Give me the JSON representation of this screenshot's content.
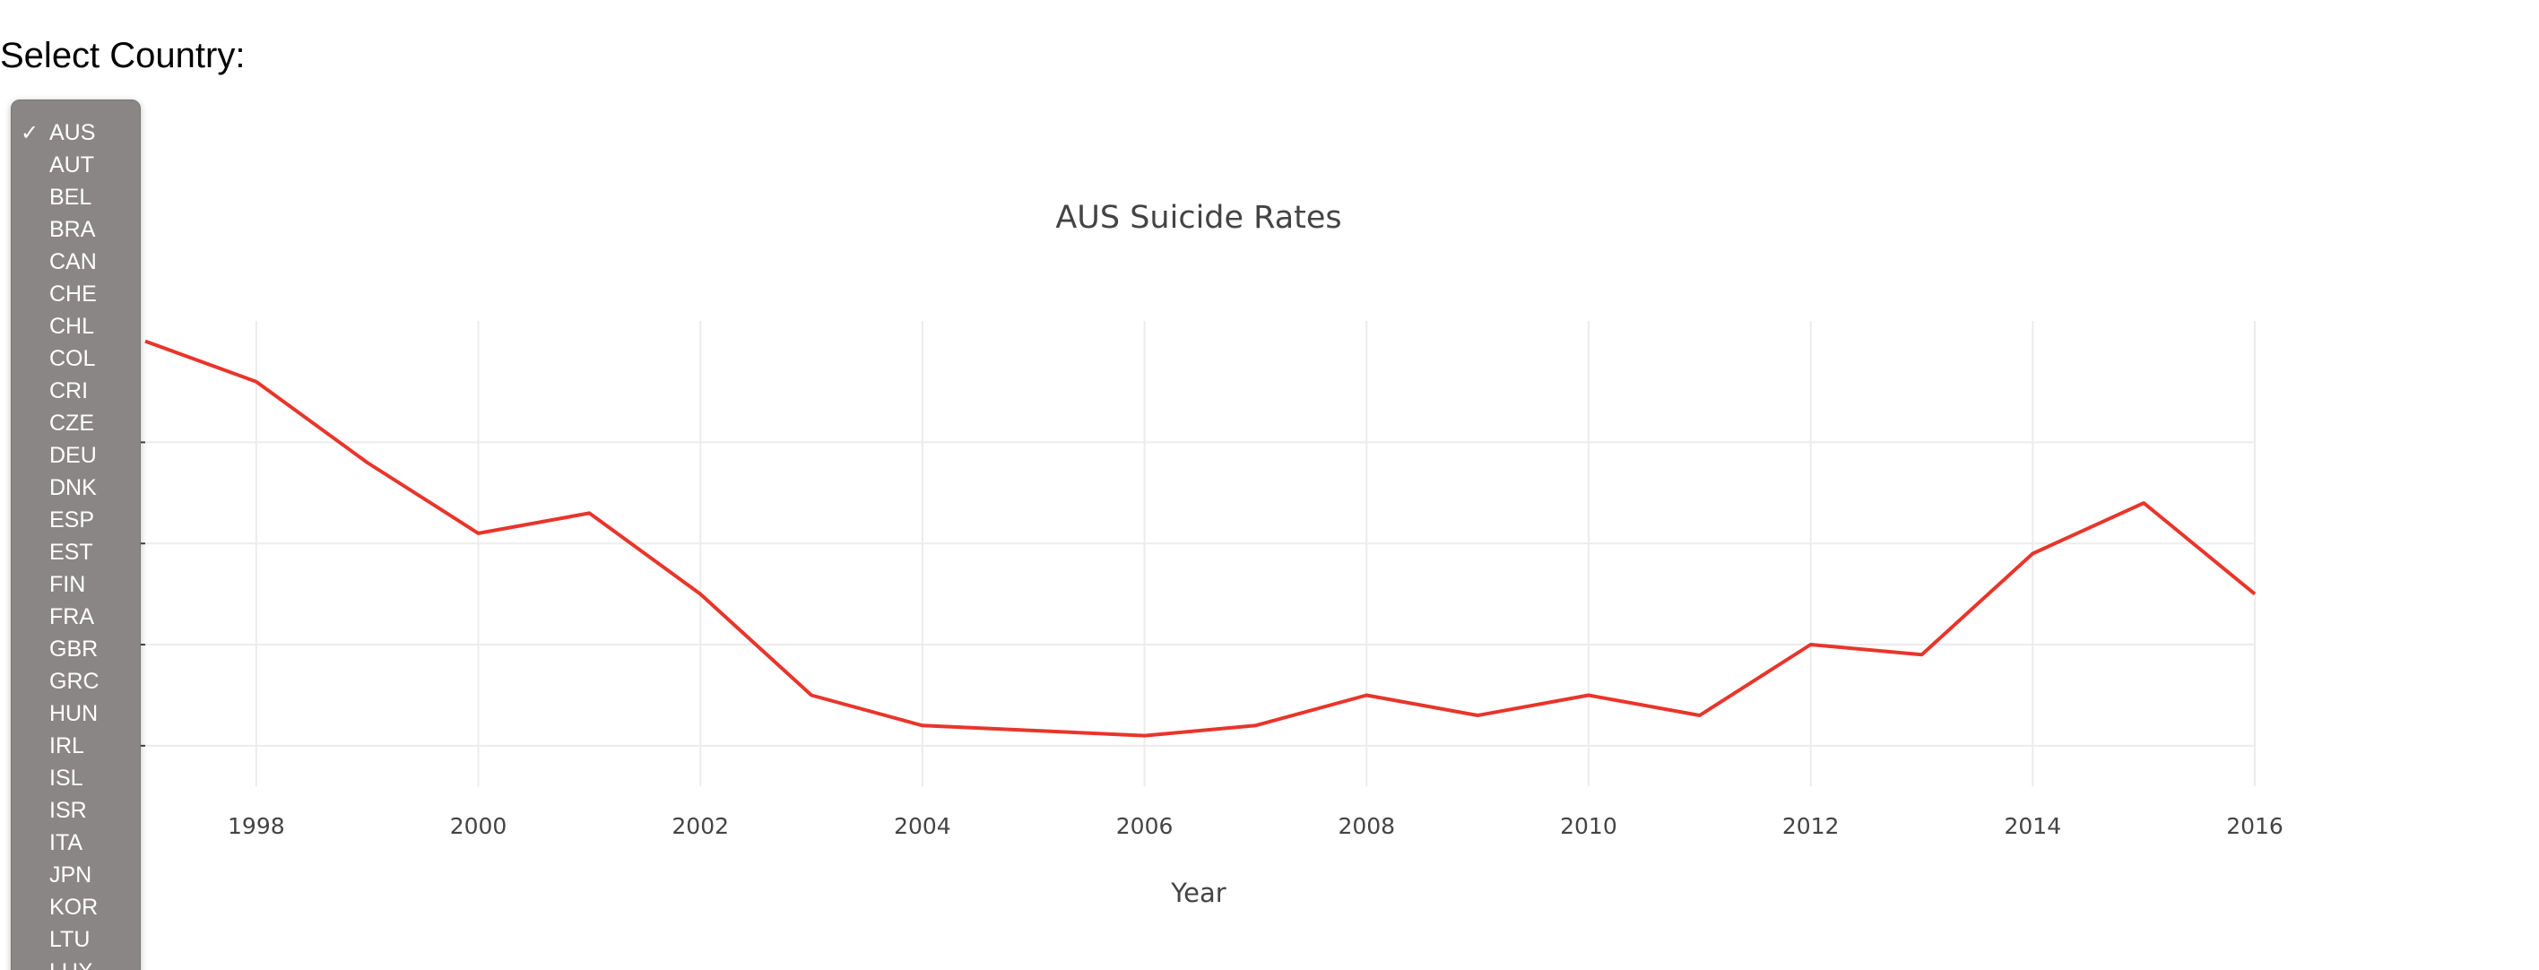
{
  "select_label": "Select Country:",
  "dropdown": {
    "selected": "AUS",
    "options": [
      "AUS",
      "AUT",
      "BEL",
      "BRA",
      "CAN",
      "CHE",
      "CHL",
      "COL",
      "CRI",
      "CZE",
      "DEU",
      "DNK",
      "ESP",
      "EST",
      "FIN",
      "FRA",
      "GBR",
      "GRC",
      "HUN",
      "IRL",
      "ISL",
      "ISR",
      "ITA",
      "JPN",
      "KOR",
      "LTU",
      "LUX"
    ]
  },
  "chart_data": {
    "type": "line",
    "title": "AUS Suicide Rates",
    "xlabel": "Year",
    "ylabel": "",
    "x": [
      1997,
      1998,
      1999,
      2000,
      2001,
      2002,
      2003,
      2004,
      2005,
      2006,
      2007,
      2008,
      2009,
      2010,
      2011,
      2012,
      2013,
      2014,
      2015,
      2016
    ],
    "series": [
      {
        "values": [
          15.0,
          14.6,
          13.8,
          13.1,
          13.3,
          12.5,
          11.5,
          11.2,
          11.15,
          11.1,
          11.2,
          11.5,
          11.3,
          11.5,
          11.3,
          12.0,
          11.9,
          12.9,
          13.4,
          12.5
        ],
        "color": "#e8352b"
      }
    ],
    "xlim": [
      1997,
      2016
    ],
    "ylim": [
      10.6,
      15.2
    ],
    "x_ticks": [
      "1998",
      "2000",
      "2002",
      "2004",
      "2006",
      "2008",
      "2010",
      "2012",
      "2014",
      "2016"
    ],
    "grid": true,
    "legend": "none"
  }
}
